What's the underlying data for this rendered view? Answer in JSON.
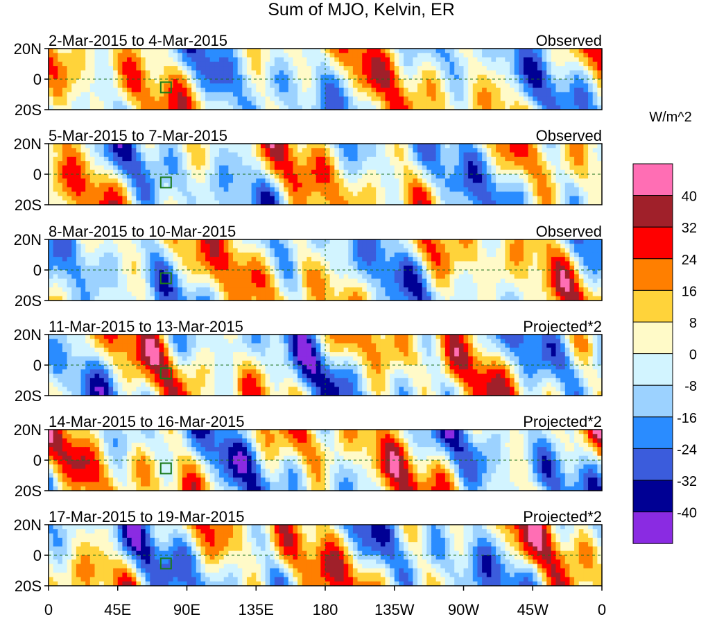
{
  "chart_data": {
    "type": "heatmap",
    "title": "Sum of MJO, Kelvin, ER",
    "units": "W/m^2",
    "x_ticks": [
      "0",
      "45E",
      "90E",
      "135E",
      "180",
      "135W",
      "90W",
      "45W",
      "0"
    ],
    "x_range": [
      0,
      360
    ],
    "y_ticks": [
      "20N",
      "0",
      "20S"
    ],
    "y_range": [
      -20,
      20
    ],
    "panels": [
      {
        "period": "2-Mar-2015 to 4-Mar-2015",
        "label": "Observed"
      },
      {
        "period": "5-Mar-2015 to 7-Mar-2015",
        "label": "Observed"
      },
      {
        "period": "8-Mar-2015 to 10-Mar-2015",
        "label": "Observed"
      },
      {
        "period": "11-Mar-2015 to 13-Mar-2015",
        "label": "Projected*2"
      },
      {
        "period": "14-Mar-2015 to 16-Mar-2015",
        "label": "Projected*2"
      },
      {
        "period": "17-Mar-2015 to 19-Mar-2015",
        "label": "Projected*2"
      }
    ],
    "colorbar": {
      "labels": [
        "40",
        "32",
        "24",
        "16",
        "8",
        "0",
        "-8",
        "-16",
        "-24",
        "-32",
        "-40"
      ],
      "colors": [
        "#ff6eb4",
        "#a0202a",
        "#ff0000",
        "#ff7f00",
        "#ffd33a",
        "#fffac8",
        "#d2f4ff",
        "#9cd2ff",
        "#2a8cff",
        "#3b5cdc",
        "#000094",
        "#8a2be2"
      ]
    }
  }
}
